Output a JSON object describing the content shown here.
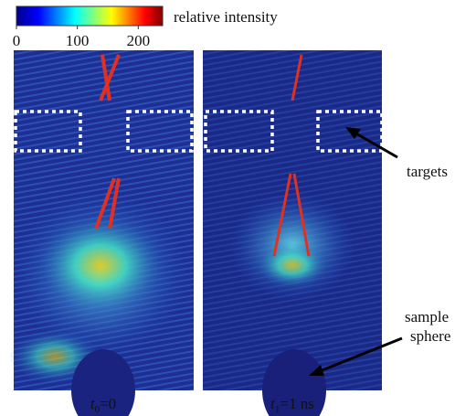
{
  "colorbar": {
    "label": "relative intensity",
    "lim": [
      0,
      240
    ],
    "ticks": [
      0,
      100,
      200
    ]
  },
  "panels": [
    {
      "caption": {
        "var": "t",
        "sub": "0",
        "rest": "=0"
      }
    },
    {
      "caption": {
        "var": "t",
        "sub": "1",
        "rest": "=1 ns"
      }
    }
  ],
  "annotations": {
    "targets": "targets",
    "sphere": [
      "sample",
      "sphere"
    ]
  }
}
